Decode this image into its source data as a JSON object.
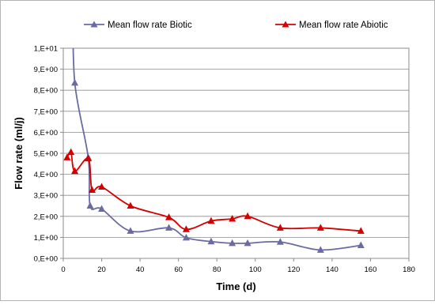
{
  "chart_data": {
    "type": "line",
    "title": "",
    "xlabel": "Time (d)",
    "ylabel": "Flow rate (ml/j)",
    "xlim": [
      0,
      180
    ],
    "ylim": [
      0,
      10
    ],
    "x_ticks": [
      0,
      20,
      40,
      60,
      80,
      100,
      120,
      140,
      160,
      180
    ],
    "x_tick_labels": [
      "0",
      "20",
      "40",
      "60",
      "80",
      "100",
      "120",
      "140",
      "160",
      "180"
    ],
    "y_ticks": [
      0,
      1,
      2,
      3,
      4,
      5,
      6,
      7,
      8,
      9,
      10
    ],
    "y_tick_labels": [
      "0,E+00",
      "1,E+00",
      "2,E+00",
      "3,E+00",
      "4,E+00",
      "5,E+00",
      "6,E+00",
      "7,E+00",
      "8,E+00",
      "9,E+00",
      "1,E+01"
    ],
    "grid": "horizontal",
    "legend_position": "top",
    "series": [
      {
        "name": "Mean flow rate Biotic",
        "color": "#6b6ba3",
        "marker": "triangle",
        "smooth": true,
        "x": [
          6,
          13,
          14,
          20,
          35,
          55,
          64,
          77,
          88,
          96,
          113,
          134,
          155
        ],
        "y": [
          8.35,
          4.8,
          2.5,
          2.35,
          1.3,
          1.45,
          0.98,
          0.8,
          0.72,
          0.72,
          0.78,
          0.4,
          0.62
        ],
        "extends_above_top_from_x": 5
      },
      {
        "name": "Mean flow rate Abiotic",
        "color": "#d40000",
        "marker": "triangle",
        "smooth": true,
        "x": [
          2,
          4,
          6,
          13,
          15,
          20,
          35,
          55,
          64,
          77,
          88,
          96,
          113,
          134,
          155
        ],
        "y": [
          4.8,
          5.05,
          4.15,
          4.75,
          3.25,
          3.4,
          2.5,
          1.95,
          1.38,
          1.78,
          1.88,
          2.0,
          1.45,
          1.45,
          1.3
        ]
      }
    ]
  }
}
